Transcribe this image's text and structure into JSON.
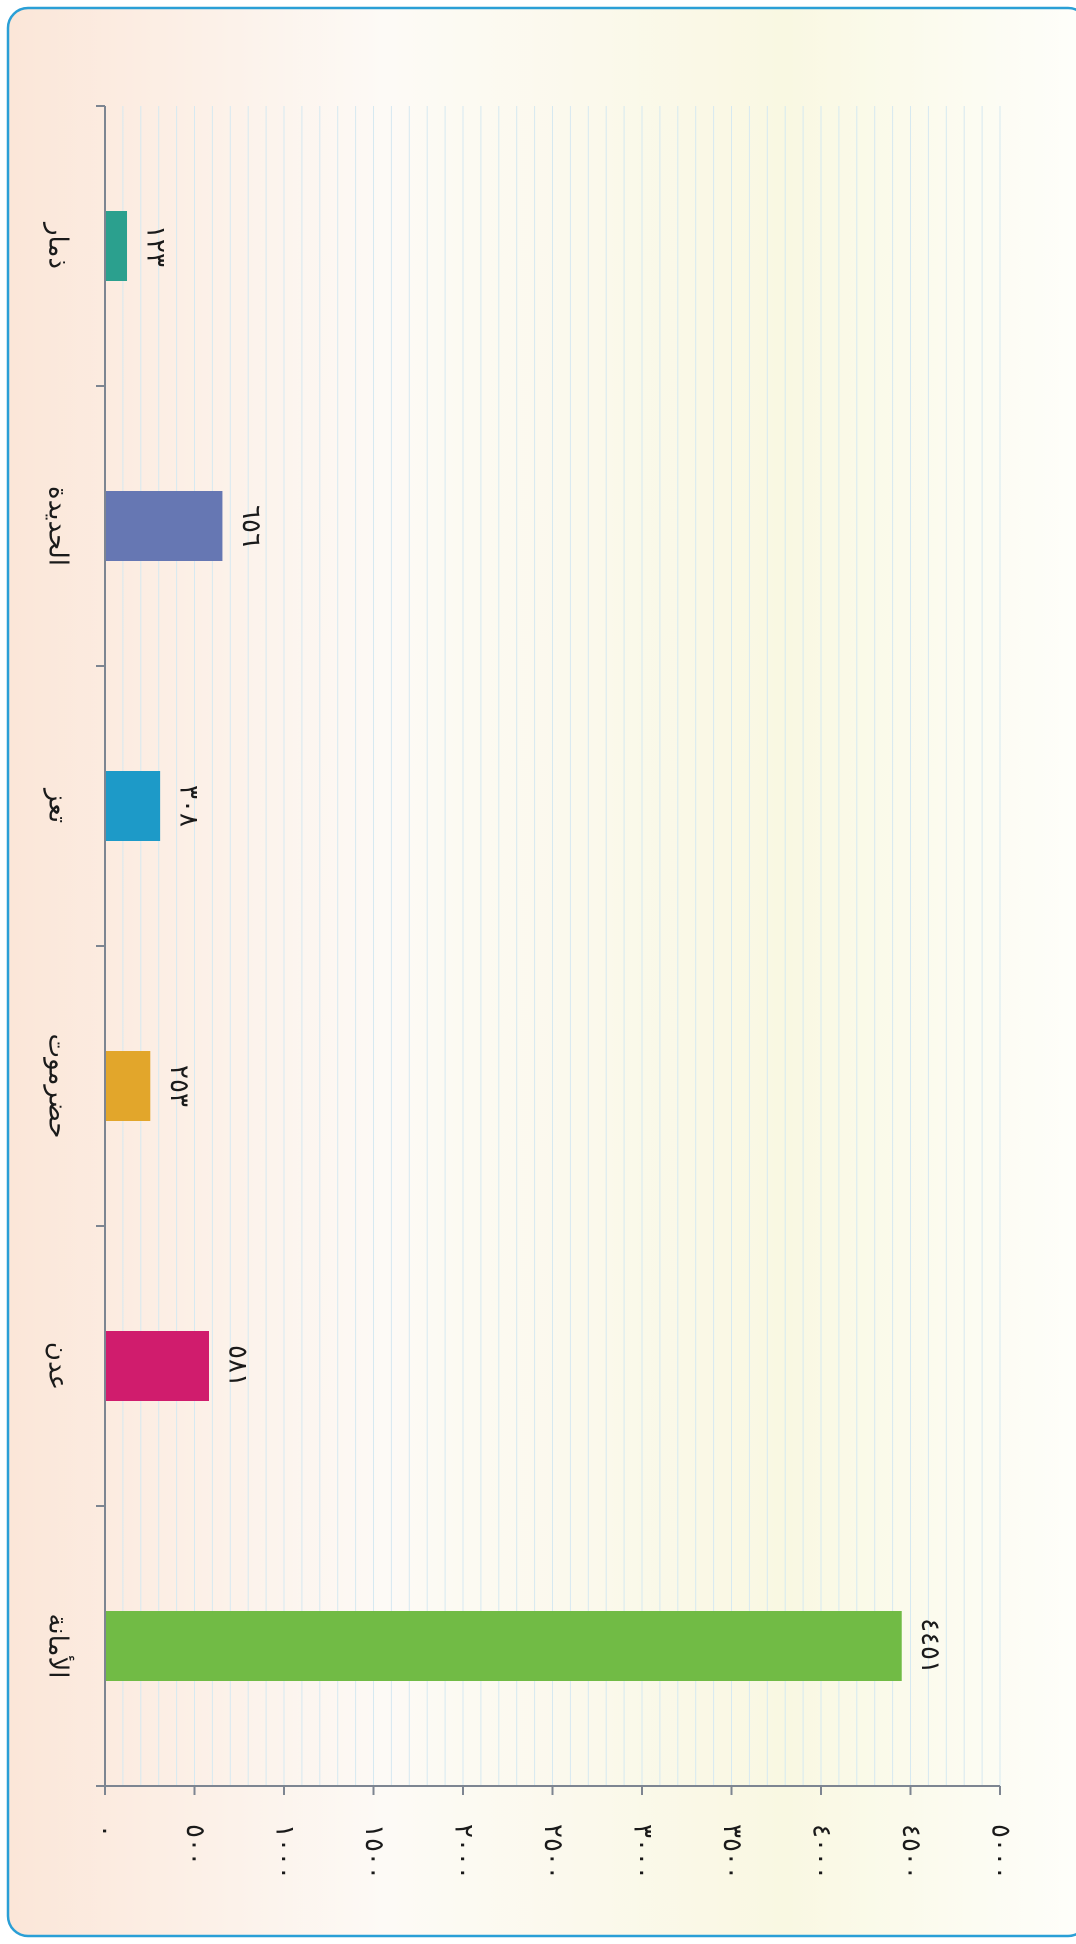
{
  "chart_data": {
    "type": "bar",
    "orientation": "horizontal",
    "categories": [
      "ذمار",
      "الحديدة",
      "تعز",
      "حضرموت",
      "عدن",
      "الأمانة"
    ],
    "values": [
      123,
      656,
      308,
      253,
      581,
      4451
    ],
    "value_labels": [
      "١٢٣",
      "٦٥٦",
      "٣٠٨",
      "٢٥٣",
      "٥٨١",
      "٤٤٥١"
    ],
    "ticks": [
      0,
      500,
      1000,
      1500,
      2000,
      2500,
      3000,
      3500,
      4000,
      4500,
      5000
    ],
    "tick_labels": [
      "٠",
      "٥٠٠",
      "١٠٠٠",
      "١٥٠٠",
      "٢٠٠٠",
      "٢٥٠٠",
      "٣٠٠٠",
      "٣٥٠٠",
      "٤٠٠٠",
      "٤٥٠٠",
      "٥٠٠٠"
    ],
    "xlim": [
      0,
      5000
    ],
    "grid": true,
    "legend": "none",
    "colors": [
      "#2ba08e",
      "#6677b3",
      "#1d9ac8",
      "#e2a62b",
      "#d01c6d",
      "#71bb45"
    ]
  }
}
